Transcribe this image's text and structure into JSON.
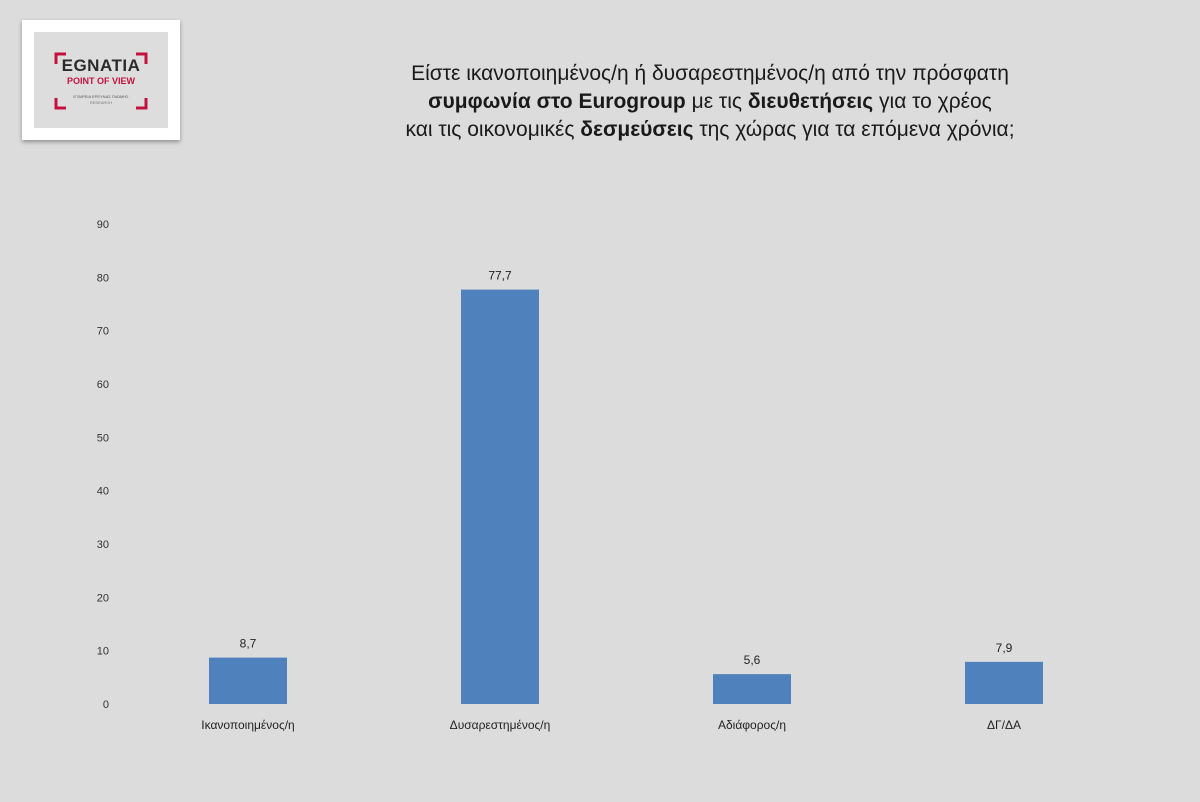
{
  "logo": {
    "brand": "EGNATIA",
    "subbrand": "POINT OF VIEW",
    "tagline": "ΕΤΑΙΡΕΙΑ ΕΡΕΥΝΑΣ ΓΝΩΜΗΣ",
    "tagline2": "RESEARCH"
  },
  "title": {
    "line1": "Είστε ικανοποιημένος/η ή δυσαρεστημένος/η από την πρόσφατη",
    "line2_bold1": "συμφωνία στο Eurogroup",
    "line2_plain1": " με τις ",
    "line2_bold2": "διευθετήσεις",
    "line2_plain2": " για το χρέος",
    "line3_plain1": "και τις οικονομικές ",
    "line3_bold1": "δεσμεύσεις",
    "line3_plain2": " της χώρας για τα επόμενα χρόνια;"
  },
  "colors": {
    "bar": "#4f81bd",
    "logo_accent": "#c4123e"
  },
  "chart_data": {
    "type": "bar",
    "categories": [
      "Ικανοποιημένος/η",
      "Δυσαρεστημένος/η",
      "Αδιάφορος/η",
      "ΔΓ/ΔΑ"
    ],
    "values": [
      8.7,
      77.7,
      5.6,
      7.9
    ],
    "value_labels": [
      "8,7",
      "77,7",
      "5,6",
      "7,9"
    ],
    "ylim": [
      0,
      90
    ],
    "yticks": [
      0,
      10,
      20,
      30,
      40,
      50,
      60,
      70,
      80,
      90
    ],
    "grid": false
  }
}
